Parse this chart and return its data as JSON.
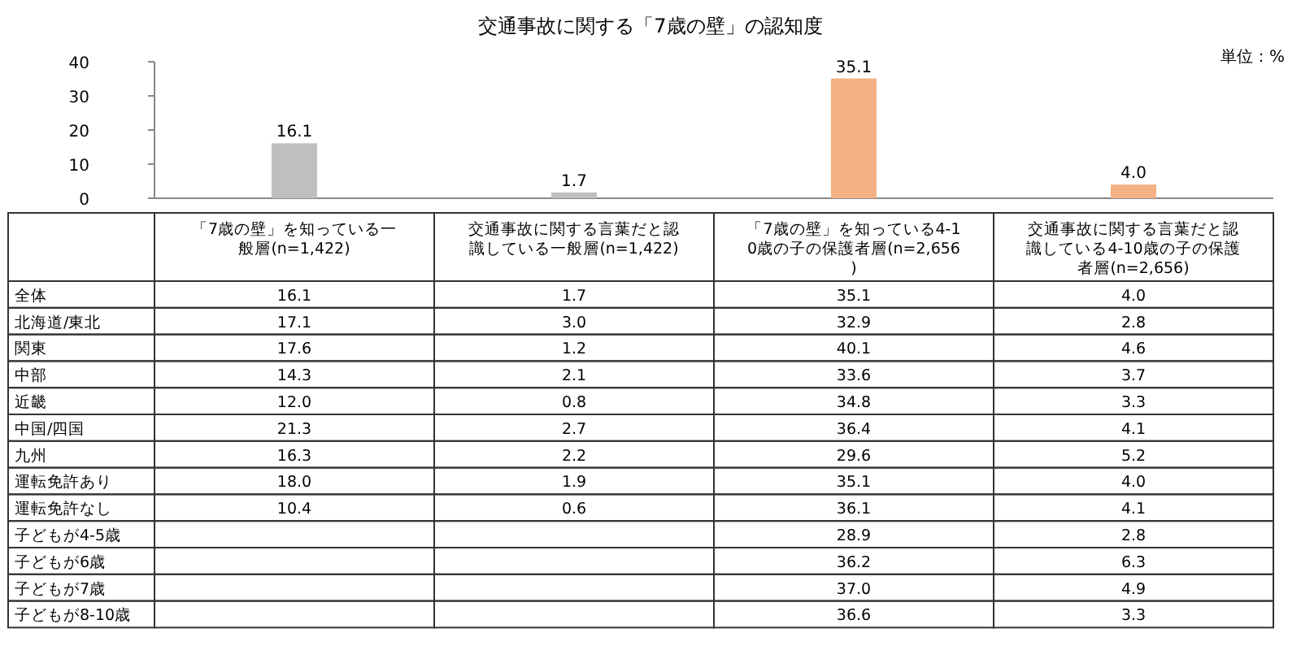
{
  "chart_data": [
    {
      "type": "bar",
      "title": "交通事故に関する「7歳の壁」の認知度",
      "annotations": [
        "単位：%"
      ],
      "categories": [
        "「7歳の壁」を知っている一般層(n=1,422)",
        "交通事故に関する言葉だと認識している一般層(n=1,422)",
        "「7歳の壁」を知っている4-10歳の子の保護者層(n=2,656)",
        "交通事故に関する言葉だと認識している4-10歳の子の保護者層(n=2,656)"
      ],
      "values": [
        16.1,
        1.7,
        35.1,
        4.0
      ],
      "colors": [
        "#bfbfbf",
        "#bfbfbf",
        "#f4b183",
        "#f4b183"
      ],
      "value_labels": [
        "16.1",
        "1.7",
        "35.1",
        "4.0"
      ],
      "ylim": [
        0,
        40
      ],
      "yticks": [
        0,
        10,
        20,
        30,
        40
      ],
      "grid": false
    },
    {
      "type": "other",
      "y_categories": [
        "全体",
        "北海道/東北",
        "関東",
        "中部",
        "近畿",
        "中国/四国",
        "九州",
        "運転免許あり",
        "運転免許なし",
        "子どもが4-5歳",
        "子どもが6歳",
        "子どもが7歳",
        "子どもが8-10歳"
      ],
      "cell_labels": [
        [
          "16.1",
          "1.7",
          "35.1",
          "4.0"
        ],
        [
          "17.1",
          "3.0",
          "32.9",
          "2.8"
        ],
        [
          "17.6",
          "1.2",
          "40.1",
          "4.6"
        ],
        [
          "14.3",
          "2.1",
          "33.6",
          "3.7"
        ],
        [
          "12.0",
          "0.8",
          "34.8",
          "3.3"
        ],
        [
          "21.3",
          "2.7",
          "36.4",
          "4.1"
        ],
        [
          "16.3",
          "2.2",
          "29.6",
          "5.2"
        ],
        [
          "18.0",
          "1.9",
          "35.1",
          "4.0"
        ],
        [
          "10.4",
          "0.6",
          "36.1",
          "4.1"
        ],
        [
          null,
          null,
          "28.9",
          "2.8"
        ],
        [
          null,
          null,
          "36.2",
          "6.3"
        ],
        [
          null,
          null,
          "37.0",
          "4.9"
        ],
        [
          null,
          null,
          "36.6",
          "3.3"
        ]
      ]
    }
  ]
}
